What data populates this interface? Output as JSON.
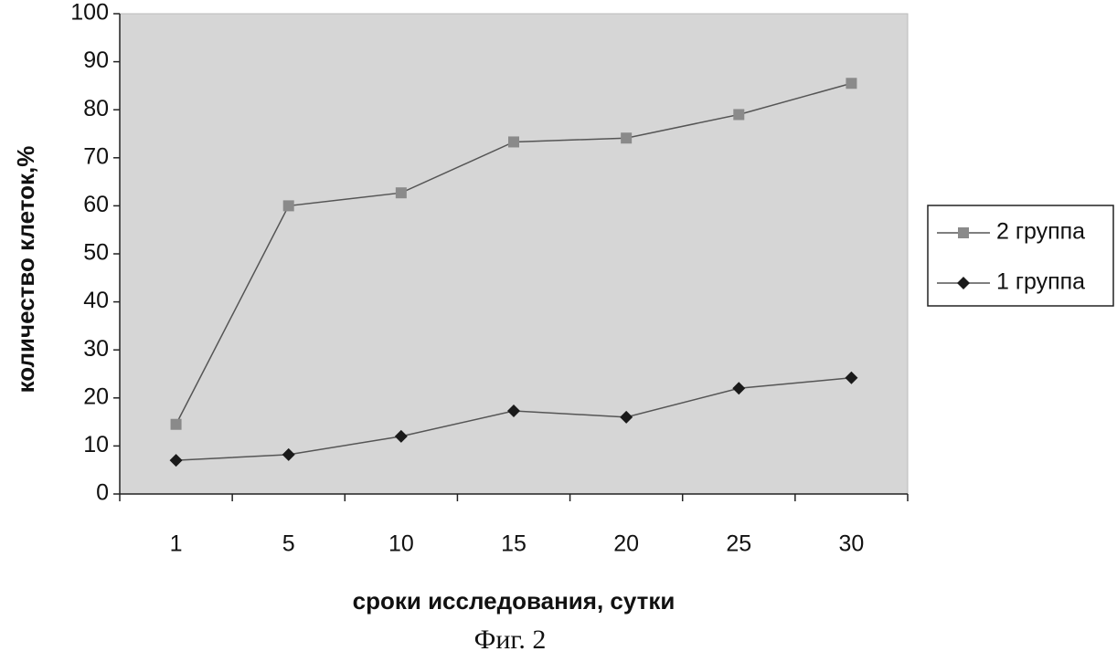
{
  "chart_data": {
    "type": "line",
    "y_label": "количество клеток,%",
    "x_label": "сроки исследования, сутки",
    "caption": "Фиг. 2",
    "categories": [
      "1",
      "5",
      "10",
      "15",
      "20",
      "25",
      "30"
    ],
    "series": [
      {
        "name": "2 группа",
        "color": "#8a8a8a",
        "marker": "square",
        "values": [
          14.5,
          60,
          62.7,
          73.3,
          74.1,
          79,
          85.5
        ]
      },
      {
        "name": "1 группа",
        "color": "#1a1a1a",
        "marker": "diamond",
        "values": [
          7,
          8.2,
          12,
          17.3,
          16,
          22,
          24.2
        ]
      }
    ],
    "ylim": [
      0,
      100
    ],
    "yticks": [
      0,
      10,
      20,
      30,
      40,
      50,
      60,
      70,
      80,
      90,
      100
    ],
    "legend": "right",
    "background": "#d6d6d6"
  }
}
